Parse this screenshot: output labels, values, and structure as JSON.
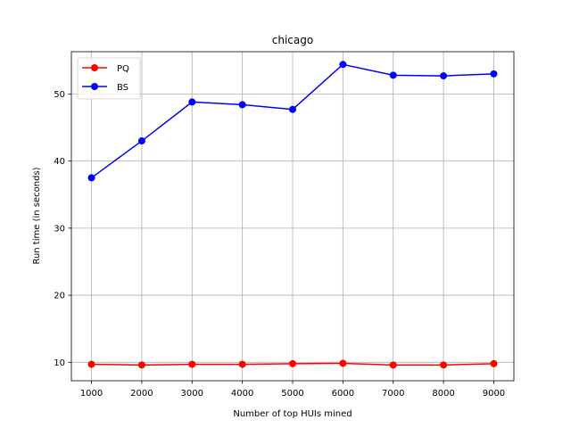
{
  "chart_data": {
    "type": "line",
    "title": "chicago",
    "xlabel": "Number of top HUIs mined",
    "ylabel": "Run time (in seconds)",
    "x": [
      1000,
      2000,
      3000,
      4000,
      5000,
      6000,
      7000,
      8000,
      9000
    ],
    "x_tick_labels": [
      "1000",
      "2000",
      "3000",
      "4000",
      "5000",
      "6000",
      "7000",
      "8000",
      "9000"
    ],
    "y_ticks": [
      10,
      20,
      30,
      40,
      50
    ],
    "y_tick_labels": [
      "10",
      "20",
      "30",
      "40",
      "50"
    ],
    "xlim": [
      600,
      9400
    ],
    "ylim": [
      7.25,
      56.3
    ],
    "grid": true,
    "legend_position": "top-left",
    "series": [
      {
        "name": "PQ",
        "color": "#ff0000",
        "marker": "circle",
        "values": [
          9.7,
          9.6,
          9.7,
          9.7,
          9.8,
          9.85,
          9.6,
          9.6,
          9.8
        ]
      },
      {
        "name": "BS",
        "color": "#0000ff",
        "marker": "circle",
        "values": [
          37.5,
          43.0,
          48.8,
          48.4,
          47.7,
          54.4,
          52.8,
          52.7,
          53.0
        ]
      }
    ]
  }
}
